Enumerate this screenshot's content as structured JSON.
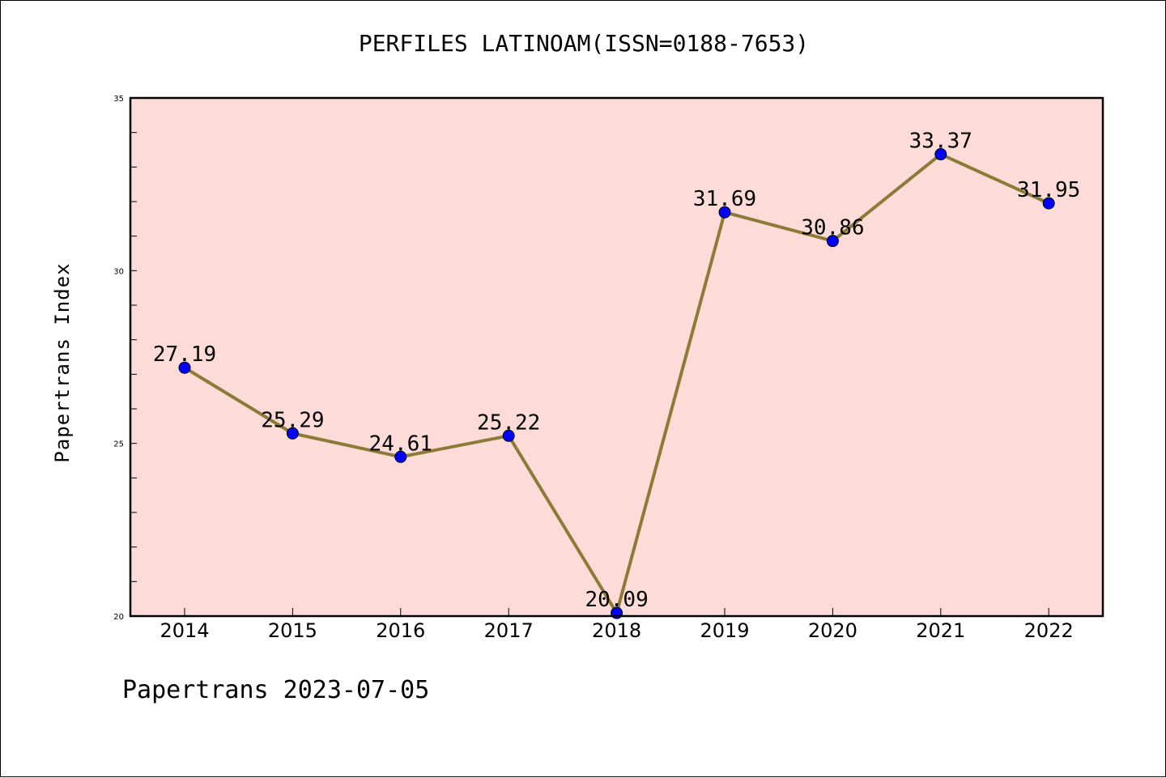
{
  "title": "PERFILES LATINOAM(ISSN=0188-7653)",
  "footer": "Papertrans 2023-07-05",
  "colors": {
    "background": "#ffffff",
    "plot_background": "#fddbd8",
    "line": "#8c7b36",
    "marker": "#0000ff"
  },
  "chart_data": {
    "type": "line",
    "title": "PERFILES LATINOAM(ISSN=0188-7653)",
    "xlabel": "",
    "ylabel": "Papertrans Index",
    "categories": [
      "2014",
      "2015",
      "2016",
      "2017",
      "2018",
      "2019",
      "2020",
      "2021",
      "2022"
    ],
    "values": [
      27.19,
      25.29,
      24.61,
      25.22,
      20.09,
      31.69,
      30.86,
      33.37,
      31.95
    ],
    "data_labels": [
      "27.19",
      "25.29",
      "24.61",
      "25.22",
      "20.09",
      "31.69",
      "30.86",
      "33.37",
      "31.95"
    ],
    "ylim": [
      20,
      35
    ],
    "yticks": [
      20,
      25,
      30,
      35
    ],
    "grid": false,
    "legend": "none"
  }
}
